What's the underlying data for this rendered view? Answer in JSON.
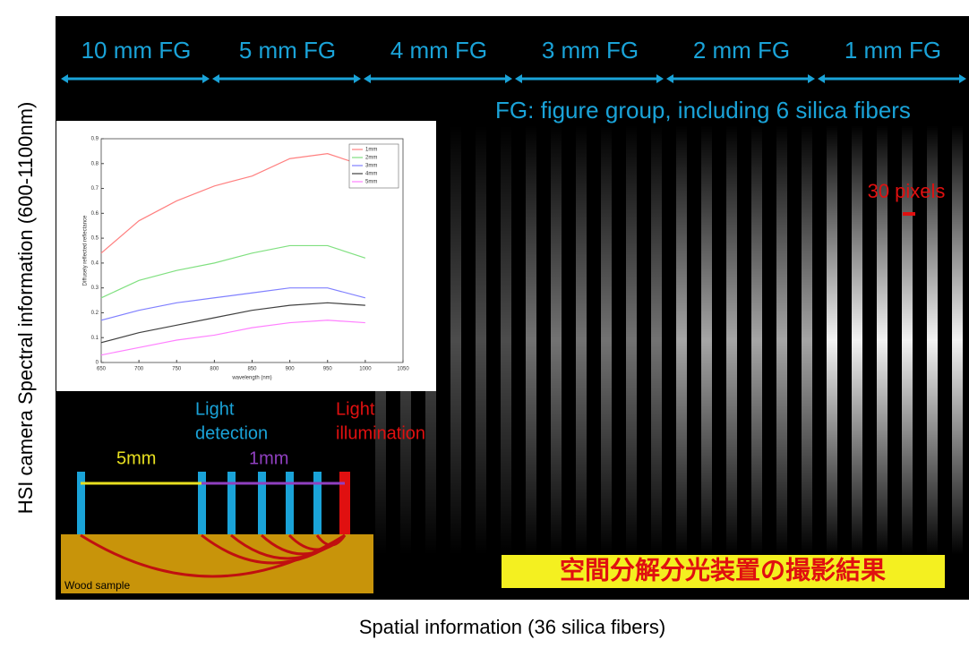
{
  "axes": {
    "y_label": "HSI camera Spectral information (600-1100nm)",
    "x_label": "Spatial information (36 silica fibers)"
  },
  "fiber_groups": [
    "10 mm FG",
    "5 mm FG",
    "4 mm FG",
    "3 mm FG",
    "2 mm FG",
    "1 mm FG"
  ],
  "fg_note": "FG: figure group, including 6 silica fibers",
  "scale_label": "30 pixels",
  "diagram": {
    "light_detection": [
      "Light",
      "detection"
    ],
    "light_illumination": [
      "Light",
      "illumination"
    ],
    "dist_5mm": "5mm",
    "dist_1mm": "1mm",
    "sample": "Wood sample"
  },
  "caption": "空間分解分光装置の撮影結果",
  "chart_data": {
    "type": "line",
    "x_label": "wavelength (nm)",
    "y_label": "Diffusely reflected reflectance",
    "x": [
      650,
      700,
      750,
      800,
      850,
      900,
      950,
      1000
    ],
    "series": [
      {
        "name": "1mm",
        "color": "#ff8080",
        "values": [
          0.44,
          0.57,
          0.65,
          0.71,
          0.75,
          0.82,
          0.84,
          0.79
        ]
      },
      {
        "name": "2mm",
        "color": "#80e080",
        "values": [
          0.26,
          0.33,
          0.37,
          0.4,
          0.44,
          0.47,
          0.47,
          0.42
        ]
      },
      {
        "name": "3mm",
        "color": "#8080ff",
        "values": [
          0.17,
          0.21,
          0.24,
          0.26,
          0.28,
          0.3,
          0.3,
          0.26
        ]
      },
      {
        "name": "4mm",
        "color": "#404040",
        "values": [
          0.08,
          0.12,
          0.15,
          0.18,
          0.21,
          0.23,
          0.24,
          0.23
        ]
      },
      {
        "name": "5mm",
        "color": "#ff80ff",
        "values": [
          0.03,
          0.06,
          0.09,
          0.11,
          0.14,
          0.16,
          0.17,
          0.16
        ]
      }
    ],
    "xlim": [
      650,
      1050
    ],
    "xticks": [
      650,
      700,
      750,
      800,
      850,
      900,
      950,
      1000,
      1050
    ],
    "ylim": [
      0,
      0.9
    ],
    "yticks": [
      0,
      0.1,
      0.2,
      0.3,
      0.4,
      0.5,
      0.6,
      0.7,
      0.8,
      0.9
    ],
    "legend": "upper-right"
  }
}
